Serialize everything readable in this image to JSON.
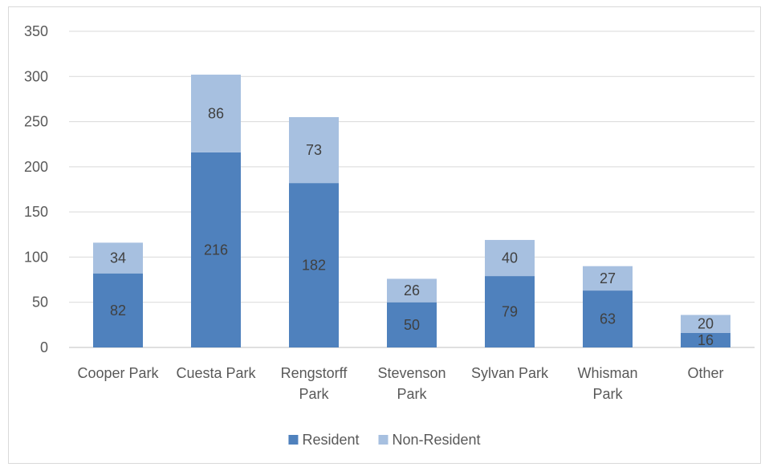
{
  "chart_data": {
    "type": "bar",
    "stacked": true,
    "categories": [
      [
        "Cooper Park"
      ],
      [
        "Cuesta Park"
      ],
      [
        "Rengstorff",
        "Park"
      ],
      [
        "Stevenson",
        "Park"
      ],
      [
        "Sylvan Park"
      ],
      [
        "Whisman",
        "Park"
      ],
      [
        "Other"
      ]
    ],
    "series": [
      {
        "name": "Resident",
        "color": "#4f81bd",
        "values": [
          82,
          216,
          182,
          50,
          79,
          63,
          16
        ]
      },
      {
        "name": "Non-Resident",
        "color": "#a7c0e0",
        "values": [
          34,
          86,
          73,
          26,
          40,
          27,
          20
        ]
      }
    ],
    "ylim": [
      0,
      350
    ],
    "yticks": [
      0,
      50,
      100,
      150,
      200,
      250,
      300,
      350
    ],
    "grid": true,
    "legend_position": "bottom",
    "title": "",
    "xlabel": "",
    "ylabel": ""
  }
}
